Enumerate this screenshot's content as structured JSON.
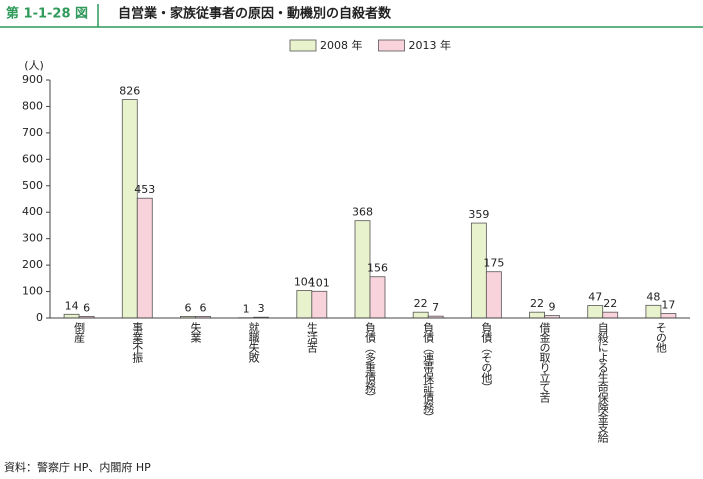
{
  "chart_data": {
    "type": "bar",
    "figure_label": "第 1-1-28 図",
    "title": "自営業・家族従事者の原因・動機別の自殺者数",
    "y_unit_label": "(人)",
    "source": "資料：警察庁 HP、内閣府 HP",
    "categories": [
      "倒産",
      "事業不振",
      "失業",
      "就職失敗",
      "生活苦",
      "負債（多重債務）",
      "負債（連帯保証債務）",
      "負債（その他）",
      "借金の取り立て苦",
      "自殺による生命保険金支給",
      "その他"
    ],
    "series": [
      {
        "name": "2008 年",
        "color": "#e8f2cc",
        "values": [
          14,
          826,
          6,
          1,
          104,
          368,
          22,
          359,
          22,
          47,
          48
        ]
      },
      {
        "name": "2013 年",
        "color": "#f8d3dc",
        "values": [
          6,
          453,
          6,
          3,
          101,
          156,
          7,
          175,
          9,
          22,
          17
        ]
      }
    ],
    "ylim": [
      0,
      900
    ],
    "yticks": [
      0,
      100,
      200,
      300,
      400,
      500,
      600,
      700,
      800,
      900
    ]
  }
}
